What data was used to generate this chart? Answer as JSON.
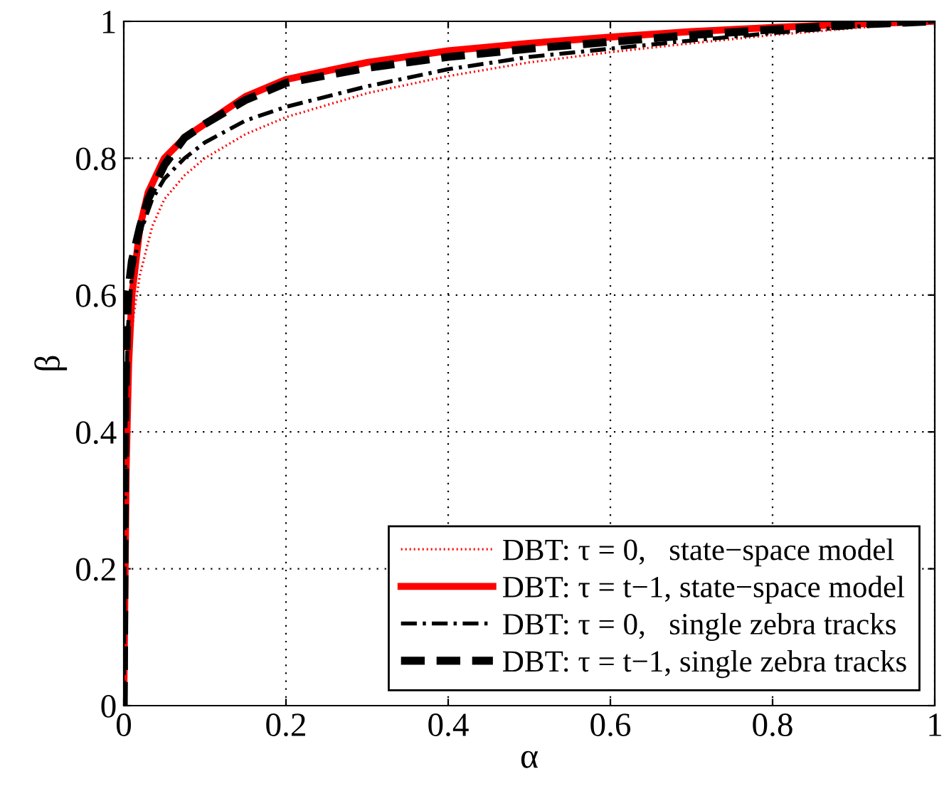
{
  "chart_data": {
    "type": "line",
    "xlabel": "α",
    "ylabel": "β",
    "xlim": [
      0,
      1
    ],
    "ylim": [
      0,
      1
    ],
    "xticks": [
      0,
      0.2,
      0.4,
      0.6,
      0.8,
      1
    ],
    "yticks": [
      0,
      0.2,
      0.4,
      0.6,
      0.8,
      1
    ],
    "grid": true,
    "legend": "bottom right",
    "series": [
      {
        "name": "DBT: τ = 0,   state−space model",
        "color": "#ff0000",
        "line_style": "dotted",
        "x": [
          0,
          0.003,
          0.007,
          0.012,
          0.02,
          0.035,
          0.05,
          0.075,
          0.1,
          0.15,
          0.2,
          0.3,
          0.4,
          0.5,
          0.6,
          0.7,
          0.8,
          0.9,
          1
        ],
        "values": [
          0,
          0.35,
          0.5,
          0.57,
          0.63,
          0.7,
          0.74,
          0.775,
          0.8,
          0.835,
          0.86,
          0.895,
          0.92,
          0.94,
          0.955,
          0.968,
          0.98,
          0.99,
          1
        ]
      },
      {
        "name": "DBT: τ = t−1, state−space model",
        "color": "#ff0000",
        "line_style": "solid",
        "x": [
          0,
          0.003,
          0.006,
          0.01,
          0.02,
          0.03,
          0.05,
          0.075,
          0.1,
          0.15,
          0.2,
          0.3,
          0.4,
          0.5,
          0.6,
          0.7,
          0.8,
          0.9,
          1
        ],
        "values": [
          0,
          0.35,
          0.5,
          0.6,
          0.7,
          0.75,
          0.8,
          0.83,
          0.85,
          0.89,
          0.915,
          0.94,
          0.957,
          0.968,
          0.977,
          0.985,
          0.991,
          0.996,
          1
        ]
      },
      {
        "name": "DBT: τ = 0,   single zebra tracks",
        "color": "#000000",
        "line_style": "dashdot",
        "x": [
          0,
          0.002,
          0.005,
          0.01,
          0.02,
          0.035,
          0.05,
          0.075,
          0.1,
          0.15,
          0.2,
          0.3,
          0.4,
          0.5,
          0.6,
          0.7,
          0.8,
          0.9,
          1
        ],
        "values": [
          0,
          0.4,
          0.55,
          0.63,
          0.69,
          0.74,
          0.77,
          0.8,
          0.823,
          0.855,
          0.875,
          0.905,
          0.93,
          0.948,
          0.96,
          0.972,
          0.983,
          0.992,
          1
        ]
      },
      {
        "name": "DBT: τ = t−1, single zebra tracks",
        "color": "#000000",
        "line_style": "dashed",
        "x": [
          0,
          0.002,
          0.005,
          0.01,
          0.02,
          0.03,
          0.05,
          0.075,
          0.1,
          0.15,
          0.2,
          0.3,
          0.4,
          0.5,
          0.6,
          0.7,
          0.8,
          0.9,
          1
        ],
        "values": [
          0,
          0.45,
          0.6,
          0.65,
          0.7,
          0.74,
          0.79,
          0.83,
          0.85,
          0.885,
          0.91,
          0.932,
          0.948,
          0.96,
          0.97,
          0.98,
          0.988,
          0.995,
          1
        ]
      }
    ]
  }
}
